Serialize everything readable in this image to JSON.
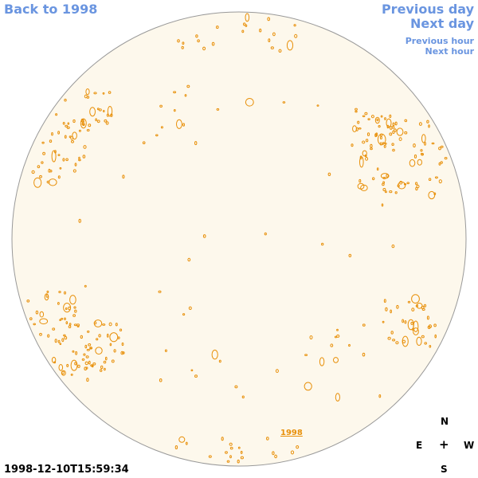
{
  "nav": {
    "back": "Back to 1998",
    "prev_day": "Previous day",
    "next_day": "Next day",
    "prev_hour": "Previous hour",
    "next_hour": "Next hour"
  },
  "year_link": "1998",
  "timestamp": "1998-12-10T15:59:34",
  "compass": {
    "north": "N",
    "east": "E",
    "west": "W",
    "south": "S",
    "center": "+"
  },
  "colors": {
    "link": "#6a95e0",
    "disk_fill": "#fdf8ec",
    "disk_border": "#999999",
    "contour": "#e8900a"
  }
}
